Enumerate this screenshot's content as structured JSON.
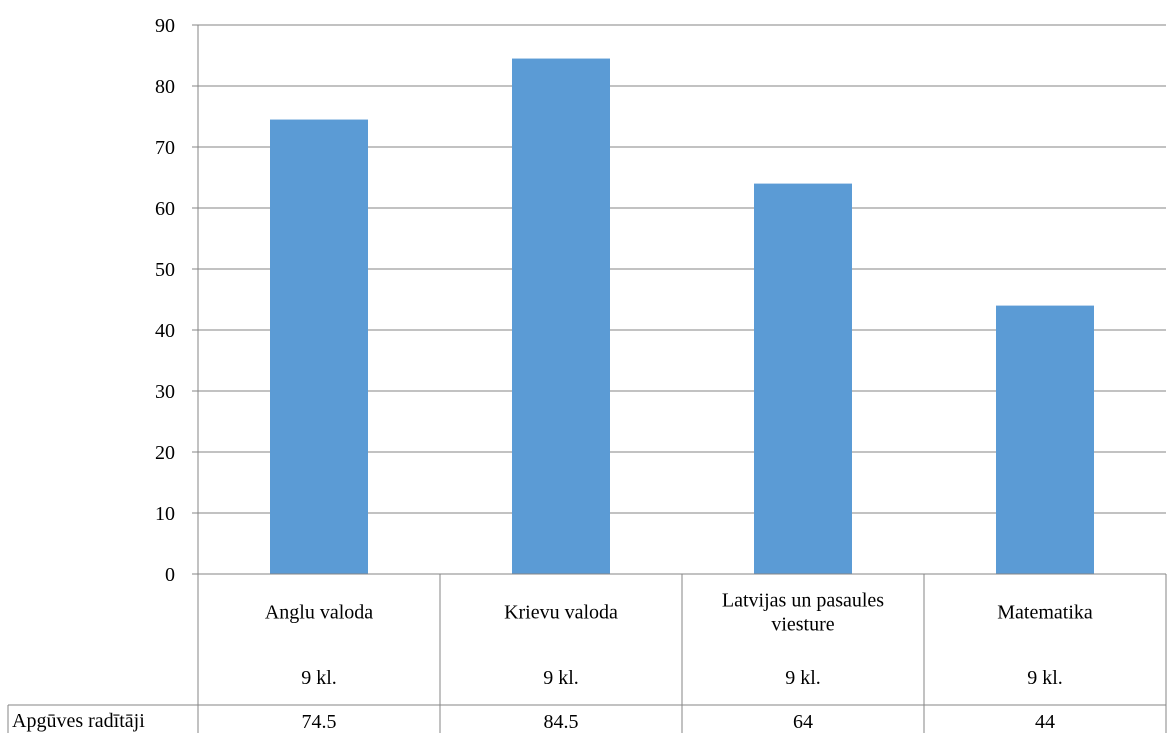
{
  "chart_data": {
    "type": "bar",
    "categories": [
      "Anglu valoda",
      "Krievu valoda",
      "Latvijas un pasaules viesture",
      "Matematika"
    ],
    "category_lines": [
      [
        "Anglu valoda"
      ],
      [
        "Krievu valoda"
      ],
      [
        "Latvijas un pasaules",
        "viesture"
      ],
      [
        "Matematika"
      ]
    ],
    "group_labels": [
      "9 kl.",
      "9 kl.",
      "9 kl.",
      "9 kl."
    ],
    "series": [
      {
        "name": "Apgūves radītāji",
        "values": [
          74.5,
          84.5,
          64,
          44
        ]
      }
    ],
    "value_labels": [
      "74.5",
      "84.5",
      "64",
      "44"
    ],
    "ylim": [
      0,
      90
    ],
    "yticks": [
      0,
      10,
      20,
      30,
      40,
      50,
      60,
      70,
      80,
      90
    ],
    "grid": true,
    "bar_color": "#5b9bd5",
    "grid_color": "#868686",
    "title": "",
    "xlabel": "",
    "ylabel": ""
  }
}
